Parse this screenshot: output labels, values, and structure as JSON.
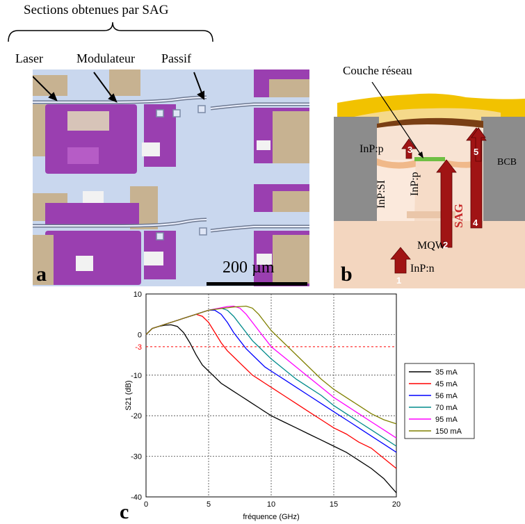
{
  "figure": {
    "top_label": "Sections obtenues par SAG",
    "panel_a": {
      "letter": "a",
      "laser_label": "Laser",
      "modulator_label": "Modulateur",
      "passive_label": "Passif",
      "scale_label": "200 µm"
    },
    "panel_b": {
      "letter": "b",
      "grating_label": "Couche réseau",
      "inp_p_left": "InP:p",
      "inp_si": "InP:SI",
      "inp_p_mid": "InP:p",
      "sag": "SAG",
      "bcb": "BCB",
      "mqw": "MQW",
      "inp_n": "InP:n",
      "steps": [
        "1",
        "2",
        "3",
        "4",
        "5"
      ]
    },
    "panel_c": {
      "letter": "c"
    }
  },
  "colors": {
    "pad_purple": "#9a3fb0",
    "pad_gold": "#c9b89a",
    "substrate_blue": "#c8d8f0",
    "arrow_red": "#a01414",
    "gold_layer": "#f2c200",
    "bcb_gray": "#8c8c8c",
    "inp_peach": "#f6d9c4"
  },
  "chart_data": {
    "type": "line",
    "title": "",
    "xlabel": "fréquence (GHz)",
    "ylabel": "S21 (dB)",
    "xlim": [
      0,
      20
    ],
    "ylim": [
      -40,
      10
    ],
    "x_ticks": [
      "0",
      "5",
      "10",
      "15",
      "20"
    ],
    "y_ticks": [
      "10",
      "0",
      "-10",
      "-20",
      "-30",
      "-40"
    ],
    "ref_line": {
      "y": -3,
      "label": "-3",
      "color": "#ff0000"
    },
    "grid": true,
    "legend_position": "right",
    "x": [
      0,
      0.5,
      1,
      1.5,
      2,
      2.5,
      3,
      3.5,
      4,
      4.5,
      5,
      5.5,
      6,
      6.5,
      7,
      7.5,
      8,
      8.5,
      9,
      9.5,
      10,
      11,
      12,
      13,
      14,
      15,
      16,
      17,
      18,
      19,
      20
    ],
    "series": [
      {
        "name": "35 mA",
        "color": "#000000",
        "values": [
          0,
          1.5,
          2,
          2.3,
          2.4,
          2,
          0.5,
          -2,
          -5,
          -7.5,
          -9,
          -10.5,
          -12,
          -13,
          -14,
          -15,
          -16,
          -17,
          -18,
          -19,
          -20,
          -21.5,
          -23,
          -24.5,
          -26,
          -27.5,
          -29,
          -31,
          -33,
          -35.5,
          -39
        ]
      },
      {
        "name": "45 mA",
        "color": "#ff0000",
        "values": [
          0,
          1.5,
          2,
          2.5,
          3,
          3.5,
          4,
          4.5,
          5,
          4.5,
          3,
          0.5,
          -2,
          -4,
          -5.5,
          -7,
          -8.5,
          -10,
          -11,
          -12,
          -13,
          -15,
          -17,
          -19,
          -21,
          -23,
          -24.5,
          -26.5,
          -28,
          -30.5,
          -33
        ]
      },
      {
        "name": "56 mA",
        "color": "#0000ff",
        "values": [
          0,
          1.5,
          2,
          2.5,
          3,
          3.5,
          4,
          4.5,
          5,
          5.5,
          6,
          6,
          5,
          3,
          0.5,
          -1.5,
          -3.5,
          -5,
          -6.5,
          -8,
          -9,
          -11,
          -13,
          -15,
          -17,
          -19,
          -21,
          -23,
          -25,
          -27,
          -29
        ]
      },
      {
        "name": "70 mA",
        "color": "#008b8b",
        "values": [
          0,
          1.5,
          2,
          2.5,
          3,
          3.5,
          4,
          4.5,
          5,
          5.5,
          6,
          6.3,
          6.5,
          6,
          4.5,
          2.5,
          0.5,
          -1.5,
          -3,
          -4.5,
          -6,
          -8.5,
          -11,
          -13,
          -15,
          -17.5,
          -19.5,
          -21.5,
          -23.5,
          -25.5,
          -27.5
        ]
      },
      {
        "name": "95 mA",
        "color": "#ff00ff",
        "values": [
          0,
          1.5,
          2,
          2.5,
          3,
          3.5,
          4,
          4.5,
          5,
          5.5,
          6,
          6.3,
          6.6,
          6.9,
          7,
          6.5,
          5,
          3,
          1,
          -1,
          -3,
          -5.5,
          -8,
          -10.5,
          -13,
          -15.5,
          -17.5,
          -19.5,
          -21.5,
          -23.5,
          -25.5
        ]
      },
      {
        "name": "150 mA",
        "color": "#808000",
        "values": [
          0,
          1.5,
          2,
          2.5,
          3,
          3.5,
          4,
          4.5,
          5,
          5.5,
          6,
          6.2,
          6.4,
          6.6,
          6.8,
          6.9,
          7,
          6.5,
          5,
          3,
          1,
          -2,
          -5,
          -8,
          -11,
          -13.5,
          -15.5,
          -17.5,
          -19.5,
          -21,
          -22
        ]
      }
    ]
  }
}
